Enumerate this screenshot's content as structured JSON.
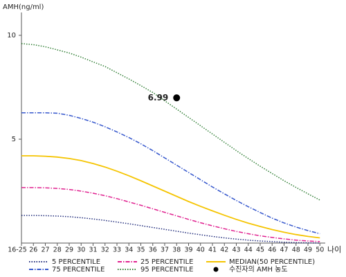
{
  "chart_data": {
    "type": "line",
    "y_label": "AMH(ng/ml)",
    "x_label": "나이",
    "categories": [
      "16-25",
      "26",
      "27",
      "28",
      "29",
      "30",
      "31",
      "32",
      "33",
      "34",
      "35",
      "36",
      "37",
      "38",
      "39",
      "40",
      "41",
      "42",
      "43",
      "44",
      "45",
      "46",
      "47",
      "48",
      "49",
      "50"
    ],
    "ylim": [
      0,
      11.1
    ],
    "yticks": [
      5,
      10
    ],
    "series": [
      {
        "name": "5 PERCENTILE",
        "color": "#1f2a7a",
        "dash": "dotted",
        "values": [
          1.33,
          1.33,
          1.32,
          1.3,
          1.27,
          1.22,
          1.16,
          1.09,
          1.01,
          0.93,
          0.84,
          0.75,
          0.66,
          0.57,
          0.48,
          0.4,
          0.32,
          0.25,
          0.19,
          0.14,
          0.1,
          0.07,
          0.04,
          0.02,
          0.01,
          0.0
        ]
      },
      {
        "name": "25 PERCENTILE",
        "color": "#e0208f",
        "dash": "dashdot",
        "values": [
          2.67,
          2.67,
          2.66,
          2.63,
          2.58,
          2.5,
          2.4,
          2.28,
          2.14,
          1.98,
          1.82,
          1.65,
          1.48,
          1.31,
          1.14,
          0.98,
          0.83,
          0.69,
          0.56,
          0.45,
          0.35,
          0.27,
          0.2,
          0.14,
          0.1,
          0.07
        ]
      },
      {
        "name": "MEDIAN(50 PERCENTILE)",
        "color": "#f5c400",
        "dash": "solid",
        "values": [
          4.2,
          4.2,
          4.18,
          4.14,
          4.07,
          3.97,
          3.83,
          3.66,
          3.46,
          3.24,
          3.0,
          2.75,
          2.5,
          2.25,
          2.0,
          1.77,
          1.55,
          1.34,
          1.14,
          0.96,
          0.8,
          0.65,
          0.52,
          0.41,
          0.32,
          0.25
        ]
      },
      {
        "name": "75 PERCENTILE",
        "color": "#3355cc",
        "dash": "dashdot",
        "values": [
          6.27,
          6.27,
          6.27,
          6.25,
          6.15,
          6.0,
          5.82,
          5.6,
          5.35,
          5.08,
          4.78,
          4.45,
          4.1,
          3.75,
          3.4,
          3.05,
          2.7,
          2.37,
          2.05,
          1.75,
          1.47,
          1.2,
          0.97,
          0.77,
          0.6,
          0.45
        ]
      },
      {
        "name": "95 PERCENTILE",
        "color": "#2e7d32",
        "dash": "dotted",
        "values": [
          9.6,
          9.55,
          9.45,
          9.3,
          9.15,
          8.95,
          8.72,
          8.5,
          8.2,
          7.9,
          7.58,
          7.25,
          6.85,
          6.45,
          6.05,
          5.65,
          5.25,
          4.85,
          4.45,
          4.07,
          3.7,
          3.35,
          3.0,
          2.68,
          2.37,
          2.07
        ]
      }
    ],
    "point": {
      "name": "수진자의 AMH 농도",
      "x": "38",
      "value": 6.99,
      "color": "#000000"
    }
  }
}
